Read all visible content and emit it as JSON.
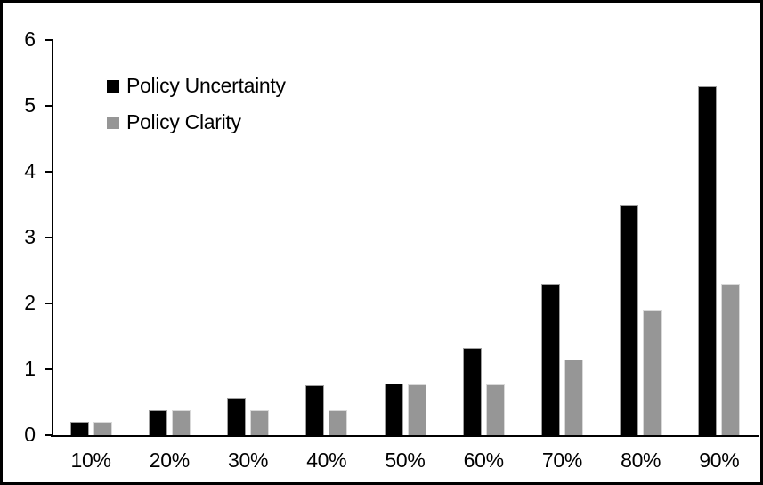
{
  "chart_data": {
    "type": "bar",
    "title": "",
    "categories": [
      "10%",
      "20%",
      "30%",
      "40%",
      "50%",
      "60%",
      "70%",
      "80%",
      "90%"
    ],
    "series": [
      {
        "name": "Policy Uncertainty",
        "color": "#000000",
        "values": [
          0.2,
          0.38,
          0.57,
          0.76,
          0.78,
          1.33,
          2.3,
          3.5,
          5.3
        ]
      },
      {
        "name": "Policy Clarity",
        "color": "#969696",
        "values": [
          0.2,
          0.38,
          0.38,
          0.38,
          0.77,
          0.77,
          1.15,
          1.9,
          2.3
        ]
      }
    ],
    "xlabel": "",
    "ylabel": "",
    "ylim": [
      0,
      6
    ],
    "yticks": [
      0,
      1,
      2,
      3,
      4,
      5,
      6
    ],
    "grid": false,
    "legend_position": "top-left",
    "axis_color": "#000000",
    "background_color": "#ffffff",
    "frame_border_color": "#000000"
  }
}
